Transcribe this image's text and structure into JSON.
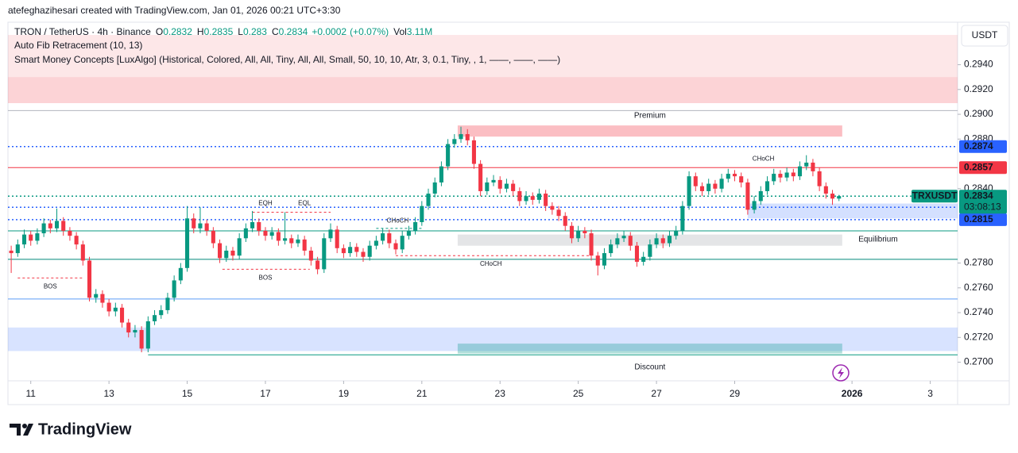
{
  "header": {
    "attribution": "atefeghazihesari created with TradingView.com, Jan 01, 2026 00:21 UTC+3:30",
    "symbol": "TRON / TetherUS · 4h · Binance",
    "ohlc": [
      {
        "label": "O",
        "value": 0.2832
      },
      {
        "label": "H",
        "value": 0.2835
      },
      {
        "label": "L",
        "value": 0.283
      },
      {
        "label": "C",
        "value": 0.2834
      }
    ],
    "change": 0.0002,
    "change_label": "+0.0002",
    "change_pct": 0.07,
    "change_pct_label": "(+0.07%)",
    "volume": {
      "label": "Vol",
      "value": 3110000,
      "value_label": "3.11M"
    },
    "indicators": [
      "Auto Fib Retracement (10, 13)",
      "Smart Money Concepts [LuxAlgo] (Historical, Colored, All, All, Tiny, All, All, Small, 50, 10, 10, Atr, 3, 0.1, Tiny, , 1, ——, ——, ——)"
    ],
    "currency": "USDT",
    "logo": "TradingView"
  },
  "chart_data": {
    "type": "candlestick",
    "up_color": "#089981",
    "down_color": "#f23645",
    "open": [
      0.279,
      0.2788,
      0.2795,
      0.2803,
      0.2798,
      0.2804,
      0.2812,
      0.2808,
      0.2814,
      0.2806,
      0.2802,
      0.2795,
      0.2782,
      0.2752,
      0.2755,
      0.2748,
      0.2741,
      0.2744,
      0.2732,
      0.2724,
      0.2726,
      0.2711,
      0.2733,
      0.2738,
      0.2742,
      0.2752,
      0.2766,
      0.2776,
      0.2816,
      0.2808,
      0.2812,
      0.2806,
      0.2796,
      0.2784,
      0.279,
      0.2786,
      0.28,
      0.2808,
      0.2813,
      0.2806,
      0.2802,
      0.2805,
      0.2798,
      0.28,
      0.2796,
      0.2799,
      0.279,
      0.2782,
      0.2775,
      0.28,
      0.2807,
      0.2792,
      0.2788,
      0.2793,
      0.2789,
      0.2785,
      0.2794,
      0.2798,
      0.2804,
      0.2796,
      0.2791,
      0.2802,
      0.2806,
      0.2813,
      0.2826,
      0.2836,
      0.2845,
      0.2858,
      0.2876,
      0.288,
      0.2884,
      0.2879,
      0.286,
      0.2838,
      0.2845,
      0.2847,
      0.284,
      0.2844,
      0.2838,
      0.283,
      0.2834,
      0.2831,
      0.2836,
      0.2826,
      0.2823,
      0.2818,
      0.281,
      0.28,
      0.2806,
      0.2804,
      0.2786,
      0.2778,
      0.2788,
      0.2795,
      0.28,
      0.2802,
      0.2794,
      0.2781,
      0.2785,
      0.2795,
      0.28,
      0.2796,
      0.2802,
      0.2806,
      0.2826,
      0.285,
      0.2842,
      0.2838,
      0.2844,
      0.284,
      0.2848,
      0.2852,
      0.285,
      0.2845,
      0.2823,
      0.283,
      0.2838,
      0.2846,
      0.2852,
      0.2849,
      0.2853,
      0.285,
      0.2858,
      0.2861,
      0.2854,
      0.2842,
      0.2836,
      0.2832
    ],
    "high": [
      0.2794,
      0.2799,
      0.2807,
      0.2806,
      0.2808,
      0.2816,
      0.2815,
      0.2824,
      0.2817,
      0.2809,
      0.2805,
      0.2798,
      0.2785,
      0.2759,
      0.2758,
      0.2751,
      0.2748,
      0.2747,
      0.2735,
      0.273,
      0.2729,
      0.2737,
      0.2742,
      0.2746,
      0.2756,
      0.277,
      0.278,
      0.2826,
      0.282,
      0.2825,
      0.2815,
      0.2809,
      0.2799,
      0.2794,
      0.2793,
      0.2804,
      0.2812,
      0.2822,
      0.2816,
      0.2809,
      0.2809,
      0.2808,
      0.2821,
      0.2803,
      0.2803,
      0.2802,
      0.2793,
      0.2785,
      0.2804,
      0.2812,
      0.281,
      0.2795,
      0.2797,
      0.2796,
      0.2792,
      0.2798,
      0.2802,
      0.2808,
      0.2807,
      0.2799,
      0.2806,
      0.281,
      0.2817,
      0.283,
      0.284,
      0.2849,
      0.2862,
      0.288,
      0.2884,
      0.289,
      0.2888,
      0.2882,
      0.2863,
      0.2849,
      0.2851,
      0.285,
      0.2848,
      0.2847,
      0.2841,
      0.2838,
      0.2837,
      0.284,
      0.2839,
      0.2829,
      0.2826,
      0.2821,
      0.2813,
      0.281,
      0.2809,
      0.2807,
      0.2789,
      0.2792,
      0.2799,
      0.2804,
      0.2806,
      0.2805,
      0.2797,
      0.2789,
      0.2799,
      0.2804,
      0.2803,
      0.2806,
      0.281,
      0.283,
      0.2854,
      0.2853,
      0.2845,
      0.2848,
      0.2847,
      0.2852,
      0.2856,
      0.2855,
      0.2853,
      0.2848,
      0.2834,
      0.2842,
      0.285,
      0.2856,
      0.2855,
      0.2857,
      0.2856,
      0.2862,
      0.2867,
      0.2864,
      0.2857,
      0.2845,
      0.2839,
      0.2835
    ],
    "low": [
      0.2772,
      0.2785,
      0.2792,
      0.2794,
      0.2795,
      0.2801,
      0.2804,
      0.2805,
      0.2802,
      0.2798,
      0.2791,
      0.2778,
      0.2749,
      0.2748,
      0.2744,
      0.2737,
      0.2737,
      0.2728,
      0.272,
      0.272,
      0.2708,
      0.2708,
      0.273,
      0.2735,
      0.2739,
      0.2749,
      0.2763,
      0.2773,
      0.2804,
      0.2804,
      0.2802,
      0.2792,
      0.278,
      0.2781,
      0.2782,
      0.2783,
      0.2797,
      0.2805,
      0.2802,
      0.2798,
      0.2799,
      0.2794,
      0.2795,
      0.2792,
      0.2793,
      0.2786,
      0.2778,
      0.2771,
      0.2772,
      0.2797,
      0.2788,
      0.2784,
      0.2785,
      0.2785,
      0.2781,
      0.2782,
      0.2791,
      0.2795,
      0.2792,
      0.2787,
      0.2788,
      0.2799,
      0.2803,
      0.281,
      0.2823,
      0.2833,
      0.2842,
      0.2855,
      0.2873,
      0.2877,
      0.2875,
      0.2856,
      0.2834,
      0.2835,
      0.2842,
      0.2836,
      0.2837,
      0.2834,
      0.2826,
      0.2827,
      0.2827,
      0.2828,
      0.2822,
      0.2819,
      0.2814,
      0.2806,
      0.2796,
      0.2797,
      0.28,
      0.2782,
      0.277,
      0.2775,
      0.2785,
      0.2792,
      0.2797,
      0.279,
      0.2777,
      0.2778,
      0.2782,
      0.2792,
      0.2792,
      0.2793,
      0.2799,
      0.2803,
      0.2823,
      0.2838,
      0.2834,
      0.2835,
      0.2836,
      0.2837,
      0.2845,
      0.2846,
      0.2841,
      0.2819,
      0.282,
      0.2827,
      0.2835,
      0.2843,
      0.2845,
      0.2846,
      0.2846,
      0.2847,
      0.2855,
      0.285,
      0.2838,
      0.2832,
      0.2827,
      0.283
    ],
    "close": [
      0.2788,
      0.2795,
      0.2803,
      0.2798,
      0.2804,
      0.2812,
      0.2808,
      0.2814,
      0.2806,
      0.2802,
      0.2795,
      0.2782,
      0.2752,
      0.2755,
      0.2748,
      0.2741,
      0.2744,
      0.2732,
      0.2724,
      0.2726,
      0.2711,
      0.2733,
      0.2738,
      0.2742,
      0.2752,
      0.2766,
      0.2776,
      0.2816,
      0.2808,
      0.2812,
      0.2806,
      0.2796,
      0.2784,
      0.279,
      0.2786,
      0.28,
      0.2808,
      0.2813,
      0.2806,
      0.2802,
      0.2805,
      0.2798,
      0.28,
      0.2796,
      0.2799,
      0.279,
      0.2782,
      0.2775,
      0.28,
      0.2807,
      0.2792,
      0.2788,
      0.2793,
      0.2789,
      0.2785,
      0.2794,
      0.2798,
      0.2804,
      0.2796,
      0.2791,
      0.2802,
      0.2806,
      0.2813,
      0.2826,
      0.2836,
      0.2845,
      0.2858,
      0.2876,
      0.288,
      0.2884,
      0.2879,
      0.286,
      0.2838,
      0.2845,
      0.2847,
      0.284,
      0.2844,
      0.2838,
      0.283,
      0.2834,
      0.2831,
      0.2836,
      0.2826,
      0.2823,
      0.2818,
      0.281,
      0.28,
      0.2806,
      0.2804,
      0.2786,
      0.2778,
      0.2788,
      0.2795,
      0.28,
      0.2802,
      0.2794,
      0.2781,
      0.2785,
      0.2795,
      0.28,
      0.2796,
      0.2802,
      0.2806,
      0.2826,
      0.285,
      0.2842,
      0.2838,
      0.2844,
      0.284,
      0.2848,
      0.2852,
      0.285,
      0.2845,
      0.2823,
      0.283,
      0.2838,
      0.2846,
      0.2852,
      0.2849,
      0.2853,
      0.285,
      0.2858,
      0.2861,
      0.2854,
      0.2842,
      0.2836,
      0.2832,
      0.2834
    ],
    "xlim": [
      -0.5,
      145.2
    ],
    "xticks": [
      {
        "value": 3,
        "label": "11"
      },
      {
        "value": 15,
        "label": "13"
      },
      {
        "value": 27,
        "label": "15"
      },
      {
        "value": 39,
        "label": "17"
      },
      {
        "value": 51,
        "label": "19"
      },
      {
        "value": 63,
        "label": "21"
      },
      {
        "value": 75,
        "label": "23"
      },
      {
        "value": 87,
        "label": "25"
      },
      {
        "value": 99,
        "label": "27"
      },
      {
        "value": 111,
        "label": "29"
      },
      {
        "value": 129,
        "label": "2026"
      },
      {
        "value": 141,
        "label": "3"
      }
    ],
    "ylim": [
      0.2685,
      0.2973
    ],
    "yticks": [
      {
        "value": 0.294,
        "label": "0.2940"
      },
      {
        "value": 0.292,
        "label": "0.2920"
      },
      {
        "value": 0.29,
        "label": "0.2900"
      },
      {
        "value": 0.288,
        "label": "0.2880"
      },
      {
        "value": 0.284,
        "label": "0.2840"
      },
      {
        "value": 0.278,
        "label": "0.2780"
      },
      {
        "value": 0.276,
        "label": "0.2760"
      },
      {
        "value": 0.274,
        "label": "0.2740"
      },
      {
        "value": 0.272,
        "label": "0.2720"
      },
      {
        "value": 0.27,
        "label": "0.2700"
      }
    ],
    "zones": [
      {
        "top": 0.2964,
        "bottom": 0.293,
        "color": "rgba(242,54,69,0.12)"
      },
      {
        "top": 0.293,
        "bottom": 0.2909,
        "color": "rgba(242,54,69,0.22)"
      },
      {
        "from": 68.5,
        "to": 127.5,
        "top": 0.2891,
        "bottom": 0.2882,
        "color": "rgba(242,54,69,0.32)"
      },
      {
        "from": 113,
        "top": 0.2828,
        "bottom": 0.2816,
        "color": "rgba(41,98,255,0.2)"
      },
      {
        "from": 68.5,
        "to": 127.5,
        "top": 0.2803,
        "bottom": 0.2794,
        "color": "rgba(120,123,134,0.2)"
      },
      {
        "top": 0.2728,
        "bottom": 0.2709,
        "color": "rgba(41,98,255,0.18)"
      },
      {
        "from": 68.5,
        "to": 127.5,
        "top": 0.2715,
        "bottom": 0.2707,
        "color": "rgba(0,150,136,0.3)"
      }
    ],
    "levels": [
      {
        "value": 0.2903,
        "color": "#b2b5be",
        "style": "solid"
      },
      {
        "value": 0.2874,
        "color": "#2962ff",
        "style": "dotted",
        "label": true
      },
      {
        "value": 0.2857,
        "color": "#f23645",
        "style": "solid",
        "label": true
      },
      {
        "value": 0.2834,
        "color": "#089981",
        "style": "dotted"
      },
      {
        "value": 0.2825,
        "color": "#2962ff",
        "style": "dotted",
        "label": true
      },
      {
        "value": 0.2815,
        "color": "#2962ff",
        "style": "dotted",
        "label": true
      },
      {
        "value": 0.2806,
        "color": "#089981",
        "style": "solid"
      },
      {
        "value": 0.2783,
        "color": "#00897b",
        "style": "solid"
      },
      {
        "value": 0.2751,
        "color": "#5b9cf6",
        "style": "solid"
      },
      {
        "value": 0.2706,
        "from": 21,
        "color": "#089981",
        "style": "solid"
      }
    ],
    "segments": [
      {
        "value": 0.2768,
        "from": 1,
        "to": 11,
        "color": "#f23645"
      },
      {
        "value": 0.2775,
        "from": 32.4,
        "to": 45.8,
        "color": "#f23645"
      },
      {
        "value": 0.2821,
        "from": 37,
        "to": 49,
        "color": "#f23645"
      },
      {
        "value": 0.2786,
        "from": 59,
        "to": 89,
        "color": "#f23645"
      },
      {
        "value": 0.2808,
        "from": 56,
        "to": 63,
        "color": "#089981"
      }
    ],
    "annotations": [
      {
        "text": "Premium",
        "x": 98,
        "y": 0.2899,
        "color": "#f23645",
        "size": "big"
      },
      {
        "text": "Equilibrium",
        "x": 133,
        "y": 0.2799,
        "color": "#9598a1",
        "size": "big"
      },
      {
        "text": "Discount",
        "x": 98,
        "y": 0.2696,
        "color": "#089981",
        "size": "big"
      },
      {
        "text": "BOS",
        "x": 6,
        "y": 0.2761,
        "color": "#f23645"
      },
      {
        "text": "BOS",
        "x": 39,
        "y": 0.2768,
        "color": "#f23645"
      },
      {
        "text": "EQH",
        "x": 39,
        "y": 0.2828,
        "color": "#f23645"
      },
      {
        "text": "EQL",
        "x": 45,
        "y": 0.2828,
        "color": "#f23645"
      },
      {
        "text": "CHoCH",
        "x": 59.3,
        "y": 0.2814,
        "color": "#089981"
      },
      {
        "text": "CHoCH",
        "x": 73.6,
        "y": 0.2779,
        "color": "#f23645"
      },
      {
        "text": "CHoCH",
        "x": 115.4,
        "y": 0.2864,
        "color": "#089981"
      }
    ],
    "last_price": {
      "name": "TRXUSDT",
      "value": 0.2834,
      "countdown": "03:08:13",
      "color": "#089981"
    }
  }
}
